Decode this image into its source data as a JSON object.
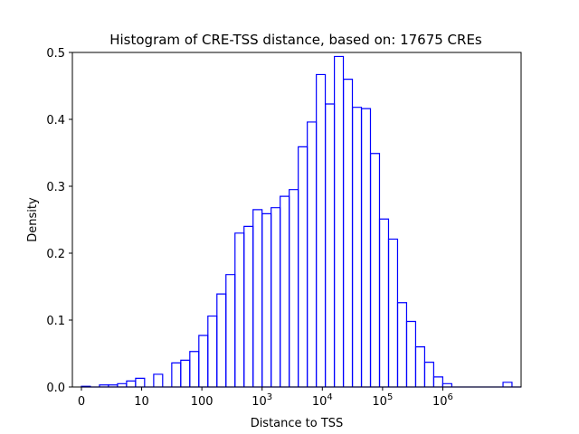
{
  "chart_data": {
    "type": "histogram",
    "title": "Histogram of CRE-TSS distance, based on: 17675 CREs",
    "xlabel": "Distance to TSS",
    "ylabel": "Density",
    "x_scale": "symlog (base 10, linear near zero)",
    "xlim": [
      -0.15,
      7.3
    ],
    "ylim": [
      0,
      0.5
    ],
    "histtype": "step",
    "color": "#0000ff",
    "grid": false,
    "x_tick_labels": [
      "0",
      "10",
      "100",
      "10^3",
      "10^4",
      "10^5",
      "10^6"
    ],
    "y_tick_labels": [
      "0.0",
      "0.1",
      "0.2",
      "0.3",
      "0.4",
      "0.5"
    ],
    "bin_width_log10": 0.149,
    "bin_edges_log10": [
      0,
      0.3,
      0.45,
      0.6,
      0.75,
      0.9,
      1.2,
      1.5,
      1.65,
      1.8,
      1.95,
      2.1,
      2.25,
      2.4,
      2.55,
      2.7,
      2.85,
      3.0,
      3.15,
      3.3,
      3.45,
      3.6,
      3.75,
      3.9,
      4.05,
      4.2,
      4.35,
      4.5,
      4.65,
      4.8,
      4.95,
      5.1,
      5.25,
      5.4,
      5.55,
      5.7,
      5.85,
      6.0,
      7.0,
      7.15
    ],
    "density": [
      0.001,
      0.003,
      0.003,
      0.005,
      0.009,
      0.013,
      0.019,
      0.036,
      0.04,
      0.053,
      0.077,
      0.106,
      0.139,
      0.168,
      0.23,
      0.24,
      0.265,
      0.259,
      0.268,
      0.285,
      0.295,
      0.359,
      0.396,
      0.467,
      0.423,
      0.494,
      0.46,
      0.418,
      0.416,
      0.349,
      0.251,
      0.221,
      0.126,
      0.098,
      0.06,
      0.037,
      0.015,
      0.005,
      0.007
    ]
  }
}
